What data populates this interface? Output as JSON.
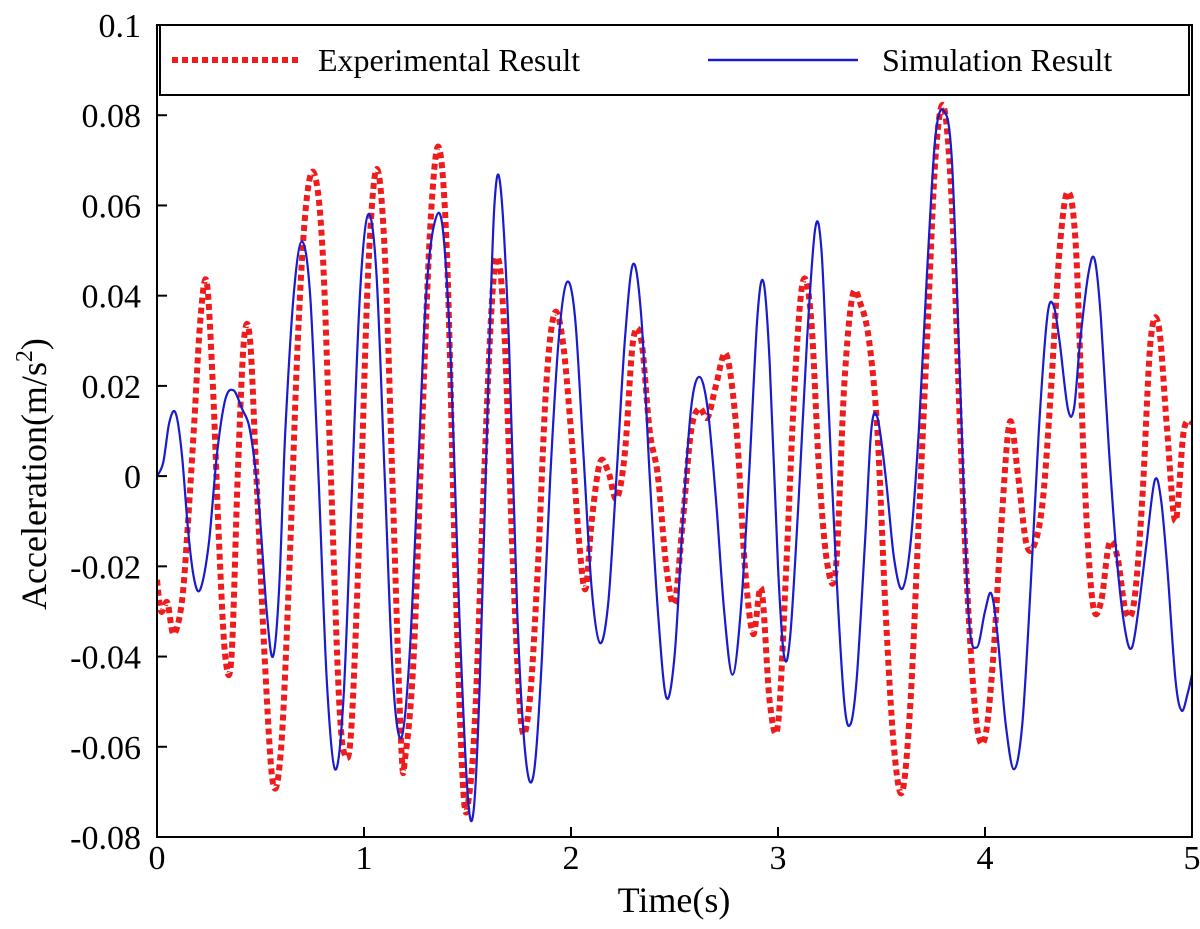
{
  "chart_data": {
    "type": "line",
    "xlabel": "Time(s)",
    "ylabel_main": "Acceleration(m/s",
    "ylabel_sup": "2",
    "ylabel_close": ")",
    "xlim": [
      0,
      5
    ],
    "ylim": [
      -0.08,
      0.1
    ],
    "xticks": [
      0,
      1,
      2,
      3,
      4,
      5
    ],
    "xtick_labels": [
      "0",
      "1",
      "2",
      "3",
      "4",
      "5"
    ],
    "yticks": [
      -0.08,
      -0.06,
      -0.04,
      -0.02,
      0,
      0.02,
      0.04,
      0.06,
      0.08,
      0.1
    ],
    "ytick_labels": [
      "-0.08",
      "-0.06",
      "-0.04",
      "-0.02",
      "0",
      "0.02",
      "0.04",
      "0.06",
      "0.08",
      "0.1"
    ],
    "grid": false,
    "legend_position": "top",
    "series": [
      {
        "name": "Experimental Result",
        "color": "#ee1c1c",
        "style": "dotted",
        "points": [
          [
            0.0,
            -0.023
          ],
          [
            0.02,
            -0.03
          ],
          [
            0.05,
            -0.028
          ],
          [
            0.08,
            -0.035
          ],
          [
            0.12,
            -0.028
          ],
          [
            0.15,
            -0.01
          ],
          [
            0.18,
            0.012
          ],
          [
            0.21,
            0.035
          ],
          [
            0.24,
            0.043
          ],
          [
            0.27,
            0.02
          ],
          [
            0.3,
            -0.015
          ],
          [
            0.33,
            -0.04
          ],
          [
            0.36,
            -0.04
          ],
          [
            0.39,
            0.0
          ],
          [
            0.42,
            0.03
          ],
          [
            0.45,
            0.03
          ],
          [
            0.48,
            0.0
          ],
          [
            0.52,
            -0.04
          ],
          [
            0.56,
            -0.068
          ],
          [
            0.6,
            -0.06
          ],
          [
            0.64,
            -0.02
          ],
          [
            0.68,
            0.03
          ],
          [
            0.72,
            0.06
          ],
          [
            0.76,
            0.067
          ],
          [
            0.8,
            0.05
          ],
          [
            0.84,
            0.0
          ],
          [
            0.88,
            -0.05
          ],
          [
            0.91,
            -0.062
          ],
          [
            0.94,
            -0.055
          ],
          [
            0.98,
            -0.01
          ],
          [
            1.02,
            0.045
          ],
          [
            1.06,
            0.068
          ],
          [
            1.1,
            0.05
          ],
          [
            1.14,
            -0.005
          ],
          [
            1.18,
            -0.06
          ],
          [
            1.2,
            -0.062
          ],
          [
            1.24,
            -0.04
          ],
          [
            1.28,
            0.01
          ],
          [
            1.32,
            0.055
          ],
          [
            1.36,
            0.073
          ],
          [
            1.4,
            0.05
          ],
          [
            1.44,
            -0.02
          ],
          [
            1.48,
            -0.07
          ],
          [
            1.51,
            -0.07
          ],
          [
            1.54,
            -0.05
          ],
          [
            1.58,
            0.0
          ],
          [
            1.62,
            0.04
          ],
          [
            1.65,
            0.048
          ],
          [
            1.68,
            0.03
          ],
          [
            1.72,
            -0.02
          ],
          [
            1.76,
            -0.055
          ],
          [
            1.8,
            -0.05
          ],
          [
            1.84,
            -0.02
          ],
          [
            1.88,
            0.02
          ],
          [
            1.92,
            0.036
          ],
          [
            1.96,
            0.03
          ],
          [
            2.0,
            0.01
          ],
          [
            2.04,
            -0.015
          ],
          [
            2.07,
            -0.025
          ],
          [
            2.1,
            -0.01
          ],
          [
            2.14,
            0.003
          ],
          [
            2.18,
            0.001
          ],
          [
            2.22,
            -0.005
          ],
          [
            2.26,
            0.005
          ],
          [
            2.3,
            0.03
          ],
          [
            2.34,
            0.03
          ],
          [
            2.38,
            0.01
          ],
          [
            2.42,
            0.0
          ],
          [
            2.46,
            -0.02
          ],
          [
            2.5,
            -0.028
          ],
          [
            2.54,
            -0.01
          ],
          [
            2.58,
            0.01
          ],
          [
            2.62,
            0.015
          ],
          [
            2.66,
            0.013
          ],
          [
            2.7,
            0.02
          ],
          [
            2.75,
            0.027
          ],
          [
            2.8,
            0.01
          ],
          [
            2.84,
            -0.02
          ],
          [
            2.88,
            -0.035
          ],
          [
            2.92,
            -0.025
          ],
          [
            2.96,
            -0.05
          ],
          [
            3.0,
            -0.055
          ],
          [
            3.04,
            -0.02
          ],
          [
            3.08,
            0.02
          ],
          [
            3.12,
            0.043
          ],
          [
            3.16,
            0.035
          ],
          [
            3.2,
            0.0
          ],
          [
            3.24,
            -0.02
          ],
          [
            3.28,
            -0.02
          ],
          [
            3.32,
            0.02
          ],
          [
            3.36,
            0.04
          ],
          [
            3.4,
            0.038
          ],
          [
            3.44,
            0.03
          ],
          [
            3.48,
            0.01
          ],
          [
            3.52,
            -0.03
          ],
          [
            3.56,
            -0.06
          ],
          [
            3.6,
            -0.07
          ],
          [
            3.64,
            -0.05
          ],
          [
            3.68,
            -0.01
          ],
          [
            3.72,
            0.03
          ],
          [
            3.76,
            0.07
          ],
          [
            3.8,
            0.082
          ],
          [
            3.84,
            0.06
          ],
          [
            3.88,
            0.01
          ],
          [
            3.92,
            -0.03
          ],
          [
            3.96,
            -0.055
          ],
          [
            4.0,
            -0.058
          ],
          [
            4.04,
            -0.04
          ],
          [
            4.08,
            -0.01
          ],
          [
            4.12,
            0.012
          ],
          [
            4.16,
            0.0
          ],
          [
            4.2,
            -0.015
          ],
          [
            4.24,
            -0.015
          ],
          [
            4.28,
            -0.005
          ],
          [
            4.32,
            0.02
          ],
          [
            4.36,
            0.05
          ],
          [
            4.4,
            0.063
          ],
          [
            4.44,
            0.05
          ],
          [
            4.48,
            0.0
          ],
          [
            4.52,
            -0.028
          ],
          [
            4.56,
            -0.028
          ],
          [
            4.6,
            -0.015
          ],
          [
            4.64,
            -0.018
          ],
          [
            4.68,
            -0.03
          ],
          [
            4.72,
            -0.028
          ],
          [
            4.76,
            -0.005
          ],
          [
            4.8,
            0.03
          ],
          [
            4.84,
            0.033
          ],
          [
            4.88,
            0.01
          ],
          [
            4.92,
            -0.01
          ],
          [
            4.96,
            0.01
          ],
          [
            5.0,
            0.012
          ]
        ]
      },
      {
        "name": "Simulation Result",
        "color": "#1a1acf",
        "style": "solid",
        "points": [
          [
            0.0,
            0.0
          ],
          [
            0.03,
            0.003
          ],
          [
            0.06,
            0.012
          ],
          [
            0.09,
            0.014
          ],
          [
            0.12,
            0.005
          ],
          [
            0.15,
            -0.012
          ],
          [
            0.18,
            -0.023
          ],
          [
            0.21,
            -0.025
          ],
          [
            0.25,
            -0.015
          ],
          [
            0.29,
            0.005
          ],
          [
            0.33,
            0.017
          ],
          [
            0.37,
            0.019
          ],
          [
            0.41,
            0.015
          ],
          [
            0.45,
            0.01
          ],
          [
            0.49,
            -0.005
          ],
          [
            0.53,
            -0.03
          ],
          [
            0.56,
            -0.04
          ],
          [
            0.59,
            -0.025
          ],
          [
            0.62,
            0.01
          ],
          [
            0.66,
            0.04
          ],
          [
            0.7,
            0.052
          ],
          [
            0.74,
            0.04
          ],
          [
            0.78,
            0.0
          ],
          [
            0.82,
            -0.045
          ],
          [
            0.86,
            -0.065
          ],
          [
            0.9,
            -0.05
          ],
          [
            0.94,
            -0.005
          ],
          [
            0.98,
            0.04
          ],
          [
            1.02,
            0.058
          ],
          [
            1.06,
            0.045
          ],
          [
            1.1,
            0.0
          ],
          [
            1.14,
            -0.045
          ],
          [
            1.18,
            -0.058
          ],
          [
            1.22,
            -0.04
          ],
          [
            1.26,
            0.0
          ],
          [
            1.3,
            0.04
          ],
          [
            1.34,
            0.056
          ],
          [
            1.38,
            0.055
          ],
          [
            1.42,
            0.025
          ],
          [
            1.46,
            -0.03
          ],
          [
            1.5,
            -0.07
          ],
          [
            1.53,
            -0.074
          ],
          [
            1.56,
            -0.045
          ],
          [
            1.6,
            0.02
          ],
          [
            1.63,
            0.06
          ],
          [
            1.66,
            0.064
          ],
          [
            1.7,
            0.03
          ],
          [
            1.74,
            -0.03
          ],
          [
            1.78,
            -0.062
          ],
          [
            1.82,
            -0.066
          ],
          [
            1.86,
            -0.04
          ],
          [
            1.9,
            0.0
          ],
          [
            1.94,
            0.03
          ],
          [
            1.98,
            0.043
          ],
          [
            2.02,
            0.035
          ],
          [
            2.06,
            0.005
          ],
          [
            2.1,
            -0.025
          ],
          [
            2.14,
            -0.037
          ],
          [
            2.18,
            -0.028
          ],
          [
            2.22,
            0.0
          ],
          [
            2.26,
            0.03
          ],
          [
            2.3,
            0.047
          ],
          [
            2.34,
            0.035
          ],
          [
            2.38,
            0.0
          ],
          [
            2.42,
            -0.03
          ],
          [
            2.46,
            -0.049
          ],
          [
            2.5,
            -0.04
          ],
          [
            2.54,
            -0.01
          ],
          [
            2.58,
            0.015
          ],
          [
            2.62,
            0.022
          ],
          [
            2.66,
            0.015
          ],
          [
            2.7,
            -0.005
          ],
          [
            2.74,
            -0.03
          ],
          [
            2.78,
            -0.044
          ],
          [
            2.82,
            -0.03
          ],
          [
            2.86,
            0.0
          ],
          [
            2.9,
            0.035
          ],
          [
            2.93,
            0.043
          ],
          [
            2.96,
            0.025
          ],
          [
            3.0,
            -0.02
          ],
          [
            3.03,
            -0.04
          ],
          [
            3.06,
            -0.035
          ],
          [
            3.1,
            -0.005
          ],
          [
            3.14,
            0.03
          ],
          [
            3.18,
            0.055
          ],
          [
            3.21,
            0.05
          ],
          [
            3.24,
            0.02
          ],
          [
            3.28,
            -0.02
          ],
          [
            3.32,
            -0.05
          ],
          [
            3.35,
            -0.055
          ],
          [
            3.38,
            -0.045
          ],
          [
            3.42,
            -0.015
          ],
          [
            3.45,
            0.01
          ],
          [
            3.48,
            0.013
          ],
          [
            3.52,
            0.0
          ],
          [
            3.56,
            -0.018
          ],
          [
            3.6,
            -0.025
          ],
          [
            3.64,
            -0.015
          ],
          [
            3.68,
            0.01
          ],
          [
            3.72,
            0.045
          ],
          [
            3.76,
            0.075
          ],
          [
            3.8,
            0.081
          ],
          [
            3.84,
            0.07
          ],
          [
            3.88,
            0.02
          ],
          [
            3.92,
            -0.03
          ],
          [
            3.96,
            -0.038
          ],
          [
            4.0,
            -0.03
          ],
          [
            4.03,
            -0.026
          ],
          [
            4.06,
            -0.035
          ],
          [
            4.1,
            -0.055
          ],
          [
            4.14,
            -0.065
          ],
          [
            4.18,
            -0.055
          ],
          [
            4.22,
            -0.025
          ],
          [
            4.26,
            0.01
          ],
          [
            4.3,
            0.035
          ],
          [
            4.33,
            0.038
          ],
          [
            4.36,
            0.03
          ],
          [
            4.4,
            0.015
          ],
          [
            4.43,
            0.015
          ],
          [
            4.46,
            0.03
          ],
          [
            4.5,
            0.045
          ],
          [
            4.53,
            0.048
          ],
          [
            4.56,
            0.035
          ],
          [
            4.6,
            0.005
          ],
          [
            4.64,
            -0.02
          ],
          [
            4.68,
            -0.035
          ],
          [
            4.71,
            -0.038
          ],
          [
            4.74,
            -0.03
          ],
          [
            4.78,
            -0.015
          ],
          [
            4.82,
            -0.001
          ],
          [
            4.85,
            -0.005
          ],
          [
            4.88,
            -0.02
          ],
          [
            4.92,
            -0.045
          ],
          [
            4.95,
            -0.052
          ],
          [
            4.98,
            -0.048
          ],
          [
            5.0,
            -0.044
          ]
        ]
      }
    ]
  }
}
